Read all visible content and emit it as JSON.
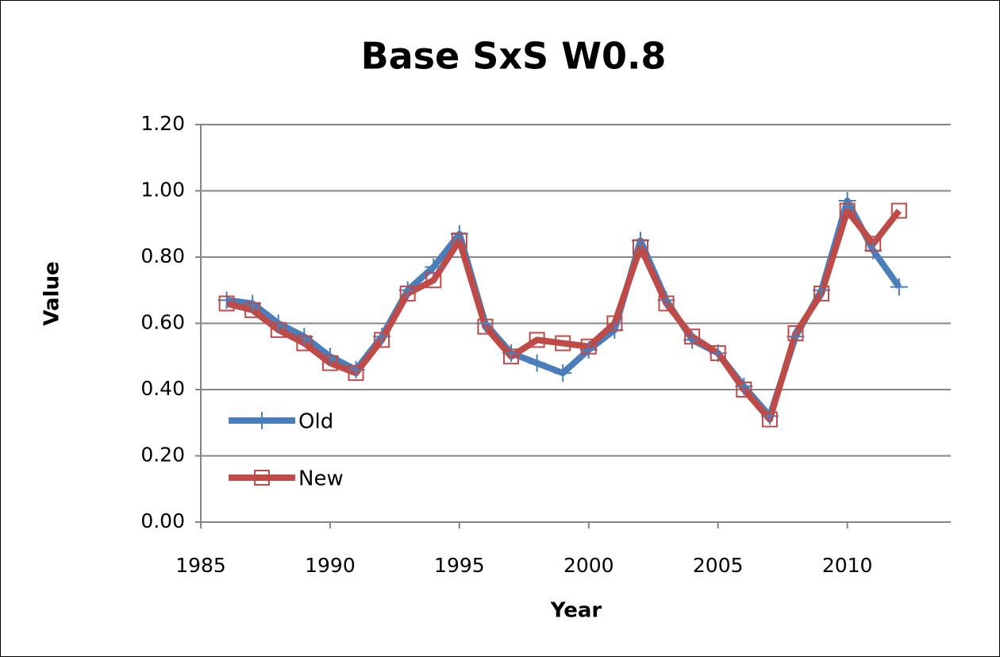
{
  "chart_data": {
    "type": "line",
    "title": "Base SxS W0.8",
    "x_label": "Year",
    "y_label": "Value",
    "x": [
      1986,
      1987,
      1988,
      1989,
      1990,
      1991,
      1992,
      1993,
      1994,
      1995,
      1996,
      1997,
      1998,
      1999,
      2000,
      2001,
      2002,
      2003,
      2004,
      2005,
      2006,
      2007,
      2008,
      2009,
      2010,
      2011,
      2012
    ],
    "series": [
      {
        "name": "Old",
        "color": "#4a7ebb",
        "marker": "plus",
        "values": [
          0.67,
          0.66,
          0.6,
          0.56,
          0.5,
          0.46,
          0.56,
          0.7,
          0.77,
          0.87,
          0.6,
          0.51,
          0.48,
          0.45,
          0.52,
          0.58,
          0.85,
          0.67,
          0.55,
          0.51,
          0.41,
          0.32,
          0.56,
          0.7,
          0.97,
          0.82,
          0.71
        ]
      },
      {
        "name": "New",
        "color": "#be4b48",
        "marker": "square",
        "values": [
          0.66,
          0.64,
          0.58,
          0.54,
          0.48,
          0.45,
          0.55,
          0.69,
          0.73,
          0.85,
          0.59,
          0.5,
          0.55,
          0.54,
          0.53,
          0.6,
          0.83,
          0.66,
          0.56,
          0.51,
          0.4,
          0.31,
          0.57,
          0.69,
          0.94,
          0.84,
          0.94
        ]
      }
    ],
    "xlim": [
      1985,
      2014
    ],
    "xticks": [
      1985,
      1990,
      1995,
      2000,
      2005,
      2010
    ],
    "ylim": [
      0,
      1.2
    ],
    "yticks": [
      {
        "value": 0,
        "label": "0.00"
      },
      {
        "value": 0.2,
        "label": "0.20"
      },
      {
        "value": 0.4,
        "label": "0.40"
      },
      {
        "value": 0.6,
        "label": "0.60"
      },
      {
        "value": 0.8,
        "label": "0.80"
      },
      {
        "value": 1.0,
        "label": "1.00"
      },
      {
        "value": 1.2,
        "label": "1.20"
      }
    ],
    "grid": true,
    "legend": "lower left"
  }
}
